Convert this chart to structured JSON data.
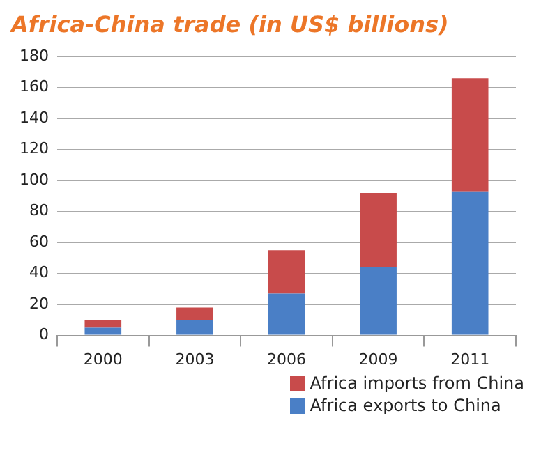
{
  "chart_data": {
    "type": "bar",
    "title": "Africa-China trade (in US$ billions)",
    "categories": [
      "2000",
      "2003",
      "2006",
      "2009",
      "2011"
    ],
    "stacked": true,
    "series": [
      {
        "name": "Africa exports to China",
        "color": "#4a7fc6",
        "values": [
          5,
          10,
          27,
          44,
          93
        ]
      },
      {
        "name": "Africa imports from China",
        "color": "#c84b4b",
        "values": [
          5,
          8,
          28,
          48,
          73
        ]
      }
    ],
    "ylim": [
      0,
      180
    ],
    "yticks": [
      0,
      20,
      40,
      60,
      80,
      100,
      120,
      140,
      160,
      180
    ],
    "grid": "y",
    "legend": "bottom right"
  }
}
